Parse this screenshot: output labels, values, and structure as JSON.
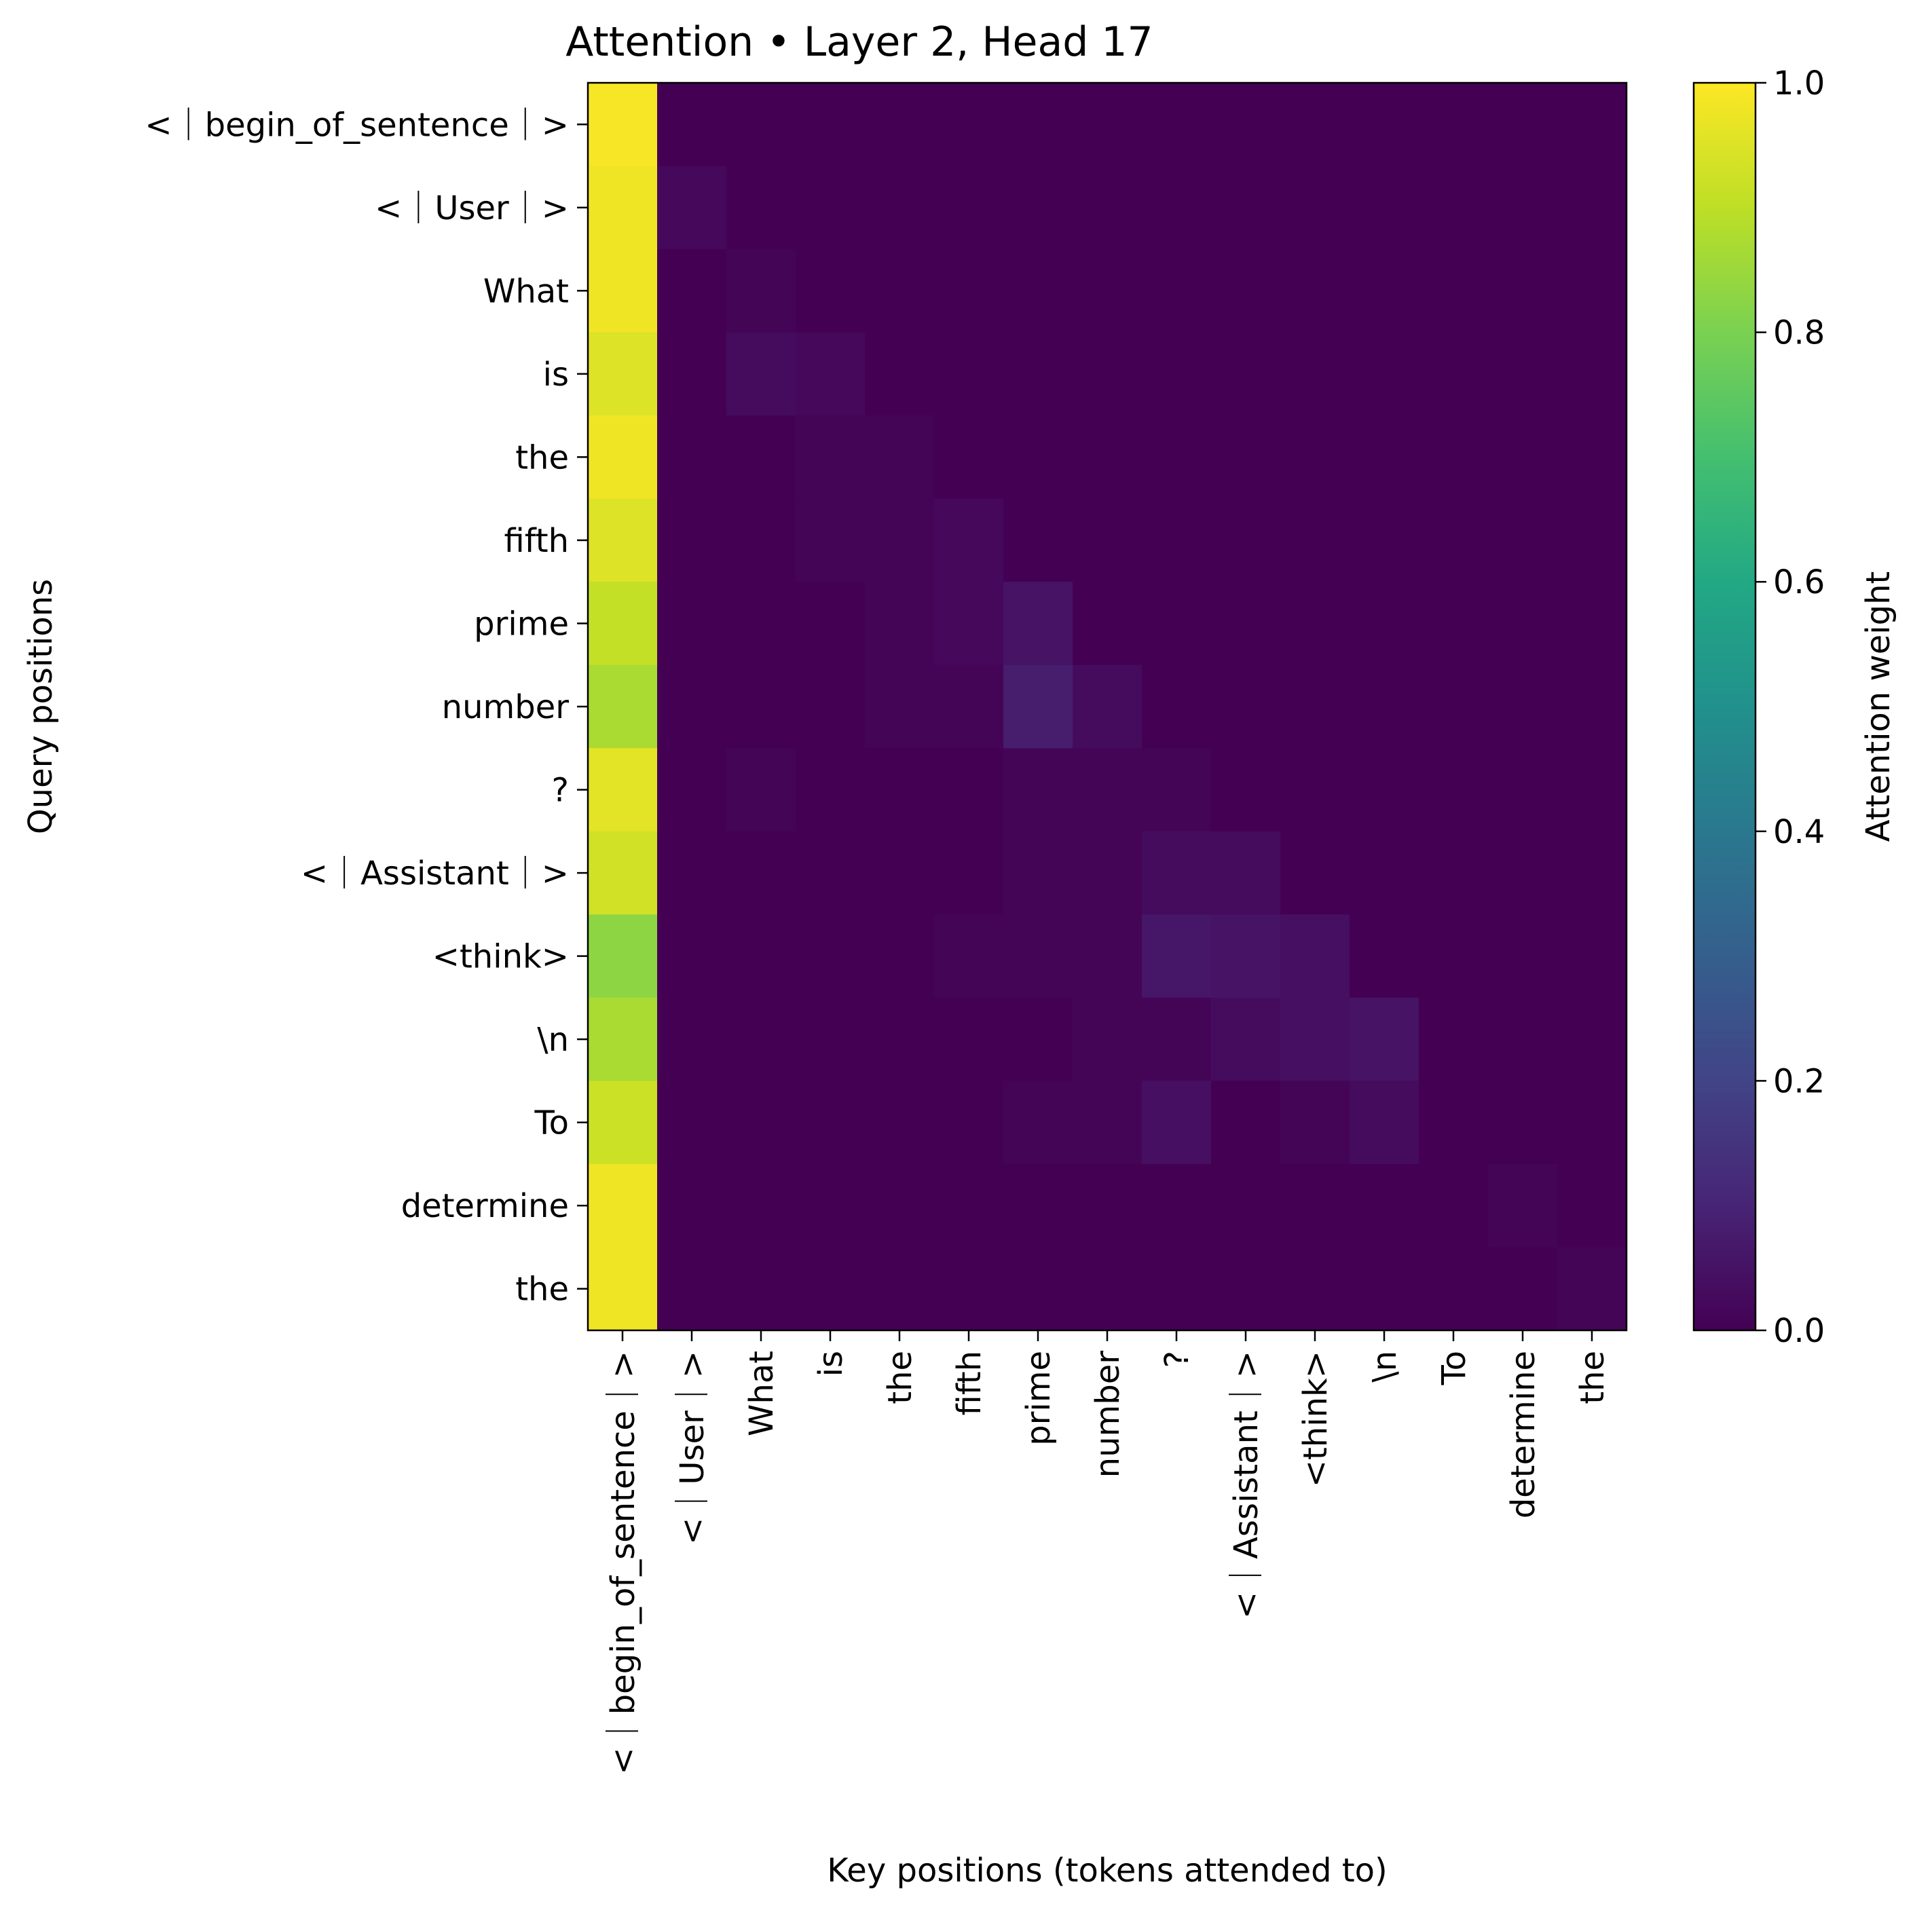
{
  "chart_data": {
    "type": "heatmap",
    "title": "Attention • Layer 2, Head 17",
    "xlabel": "Key positions (tokens attended to)",
    "ylabel": "Query positions",
    "colorbar_label": "Attention weight",
    "colormap": "viridis",
    "vmin": 0.0,
    "vmax": 1.0,
    "colorbar_ticks": [
      "0.0",
      "0.2",
      "0.4",
      "0.6",
      "0.8",
      "1.0"
    ],
    "colorbar_tick_values": [
      0.0,
      0.2,
      0.4,
      0.6,
      0.8,
      1.0
    ],
    "x_tokens": [
      "<｜begin_of_sentence｜>",
      "<｜User｜>",
      "What",
      "is",
      "the",
      "fifth",
      "prime",
      "number",
      "?",
      "<｜Assistant｜>",
      "<think>",
      "\\n",
      "To",
      "determine",
      "the"
    ],
    "y_tokens": [
      "<｜begin_of_sentence｜>",
      "<｜User｜>",
      "What",
      "is",
      "the",
      "fifth",
      "prime",
      "number",
      "?",
      "<｜Assistant｜>",
      "<think>",
      "\\n",
      "To",
      "determine",
      "the"
    ],
    "values": [
      [
        0.99,
        0.0,
        0.0,
        0.0,
        0.0,
        0.0,
        0.0,
        0.0,
        0.0,
        0.0,
        0.0,
        0.0,
        0.0,
        0.0,
        0.0
      ],
      [
        0.98,
        0.02,
        0.0,
        0.0,
        0.0,
        0.0,
        0.0,
        0.0,
        0.0,
        0.0,
        0.0,
        0.0,
        0.0,
        0.0,
        0.0
      ],
      [
        0.98,
        0.0,
        0.01,
        0.0,
        0.0,
        0.0,
        0.0,
        0.0,
        0.0,
        0.0,
        0.0,
        0.0,
        0.0,
        0.0,
        0.0
      ],
      [
        0.95,
        0.0,
        0.03,
        0.02,
        0.0,
        0.0,
        0.0,
        0.0,
        0.0,
        0.0,
        0.0,
        0.0,
        0.0,
        0.0,
        0.0
      ],
      [
        0.98,
        0.0,
        0.0,
        0.01,
        0.01,
        0.0,
        0.0,
        0.0,
        0.0,
        0.0,
        0.0,
        0.0,
        0.0,
        0.0,
        0.0
      ],
      [
        0.95,
        0.0,
        0.0,
        0.01,
        0.01,
        0.02,
        0.0,
        0.0,
        0.0,
        0.0,
        0.0,
        0.0,
        0.0,
        0.0,
        0.0
      ],
      [
        0.91,
        0.0,
        0.0,
        0.0,
        0.01,
        0.02,
        0.05,
        0.0,
        0.0,
        0.0,
        0.0,
        0.0,
        0.0,
        0.0,
        0.0
      ],
      [
        0.87,
        0.0,
        0.0,
        0.0,
        0.01,
        0.01,
        0.08,
        0.03,
        0.0,
        0.0,
        0.0,
        0.0,
        0.0,
        0.0,
        0.0
      ],
      [
        0.96,
        0.0,
        0.01,
        0.0,
        0.0,
        0.0,
        0.01,
        0.01,
        0.01,
        0.0,
        0.0,
        0.0,
        0.0,
        0.0,
        0.0
      ],
      [
        0.93,
        0.0,
        0.0,
        0.0,
        0.0,
        0.0,
        0.01,
        0.01,
        0.03,
        0.03,
        0.0,
        0.0,
        0.0,
        0.0,
        0.0
      ],
      [
        0.83,
        0.0,
        0.0,
        0.0,
        0.0,
        0.01,
        0.01,
        0.01,
        0.06,
        0.05,
        0.04,
        0.0,
        0.0,
        0.0,
        0.0
      ],
      [
        0.87,
        0.0,
        0.0,
        0.0,
        0.0,
        0.0,
        0.0,
        0.01,
        0.01,
        0.03,
        0.04,
        0.05,
        0.0,
        0.0,
        0.0
      ],
      [
        0.92,
        0.0,
        0.0,
        0.0,
        0.0,
        0.0,
        0.01,
        0.01,
        0.04,
        0.0,
        0.01,
        0.03,
        0.0,
        0.0,
        0.0
      ],
      [
        0.98,
        0.0,
        0.0,
        0.0,
        0.0,
        0.0,
        0.0,
        0.0,
        0.0,
        0.0,
        0.0,
        0.0,
        0.0,
        0.01,
        0.0
      ],
      [
        0.98,
        0.0,
        0.0,
        0.0,
        0.0,
        0.0,
        0.0,
        0.0,
        0.0,
        0.0,
        0.0,
        0.0,
        0.0,
        0.0,
        0.01
      ]
    ]
  }
}
